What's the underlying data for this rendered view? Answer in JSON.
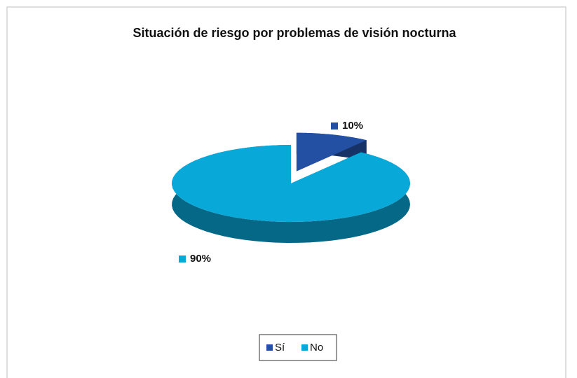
{
  "chart_data": {
    "type": "pie",
    "title": "Situación de riesgo por problemas de visión nocturna",
    "categories": [
      "Sí",
      "No"
    ],
    "values": [
      10,
      90
    ],
    "value_labels": [
      "10%",
      "90%"
    ],
    "colors": [
      "#2450a4",
      "#08a8d8"
    ],
    "legend": "bottom"
  }
}
